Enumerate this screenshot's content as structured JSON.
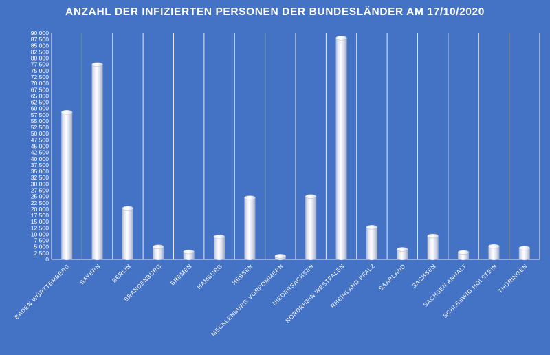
{
  "chart_data": {
    "type": "bar",
    "title": "ANZAHL DER INFIZIERTEN PERSONEN DER BUNDESLÄNDER AM 17/10/2020",
    "xlabel": "",
    "ylabel": "",
    "ylim": [
      0,
      90000
    ],
    "ytick_step": 2500,
    "grid": true,
    "legend": "none",
    "categories": [
      "BADEN WÜRTTEMBERG",
      "BAYERN",
      "BERLIN",
      "BRANDENBURG",
      "BREMEN",
      "HAMBURG",
      "HESSEN",
      "MECKLENBURG VORPOMMERN",
      "NIEDERSACHSEN",
      "NORDRHEIN WESTFALEN",
      "RHEINLAND PFALZ",
      "SAARLAND",
      "SACHSEN",
      "SACHSEN ANHALT",
      "SCHLESWIG HOLSTEIN",
      "THÜRINGEN"
    ],
    "values": [
      58500,
      77500,
      20300,
      5000,
      3000,
      9000,
      24500,
      1300,
      25000,
      88000,
      12800,
      4000,
      9300,
      2800,
      5200,
      4500
    ],
    "ytick_labels": [
      "0",
      "2.500",
      "5.000",
      "7.500",
      "10.000",
      "12.500",
      "15.000",
      "17.500",
      "20.000",
      "22.500",
      "25.000",
      "27.500",
      "30.000",
      "32.500",
      "35.000",
      "37.500",
      "40.000",
      "42.500",
      "45.000",
      "47.500",
      "50.000",
      "52.500",
      "55.000",
      "57.500",
      "60.000",
      "62.500",
      "65.000",
      "67.500",
      "70.000",
      "72.500",
      "75.000",
      "77.500",
      "80.000",
      "82.500",
      "85.000",
      "87.500",
      "90.000"
    ],
    "colors": {
      "background": "#4472c4",
      "bar": "#e4e8f6",
      "grid": "#ffffff",
      "text": "#ffffff"
    }
  }
}
